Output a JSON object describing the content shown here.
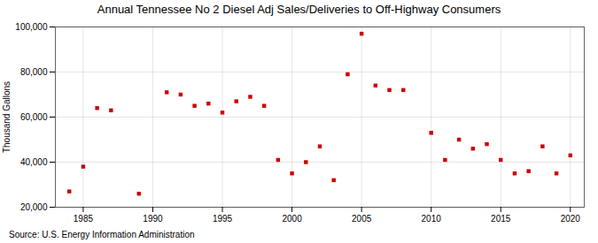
{
  "chart_data": {
    "type": "scatter",
    "title": "Annual Tennessee No 2 Diesel Adj Sales/Deliveries to Off-Highway Consumers",
    "ylabel": "Thousand Gallons",
    "source": "Source: U.S. Energy Information Administration",
    "x": [
      1984,
      1985,
      1986,
      1987,
      1989,
      1991,
      1992,
      1993,
      1994,
      1995,
      1996,
      1997,
      1998,
      1999,
      2000,
      2001,
      2002,
      2003,
      2004,
      2005,
      2006,
      2007,
      2008,
      2010,
      2011,
      2012,
      2013,
      2014,
      2015,
      2016,
      2017,
      2018,
      2019,
      2020
    ],
    "values": [
      27000,
      38000,
      64000,
      63000,
      26000,
      71000,
      70000,
      65000,
      66000,
      62000,
      67000,
      69000,
      65000,
      41000,
      35000,
      40000,
      47000,
      32000,
      79000,
      97000,
      74000,
      72000,
      72000,
      53000,
      41000,
      50000,
      46000,
      48000,
      41000,
      35000,
      36000,
      47000,
      35000,
      43000
    ],
    "color": "#cc0000",
    "marker": "square",
    "xlim": [
      1983,
      2021
    ],
    "xticks": [
      1985,
      1990,
      1995,
      2000,
      2005,
      2010,
      2015,
      2020
    ],
    "ylim": [
      20000,
      100000
    ],
    "yticks": [
      {
        "value": 20000,
        "label": "20,000"
      },
      {
        "value": 40000,
        "label": "40,000"
      },
      {
        "value": 60000,
        "label": "60,000"
      },
      {
        "value": 80000,
        "label": "80,000"
      },
      {
        "value": 100000,
        "label": "100,000"
      }
    ],
    "grid": true
  }
}
